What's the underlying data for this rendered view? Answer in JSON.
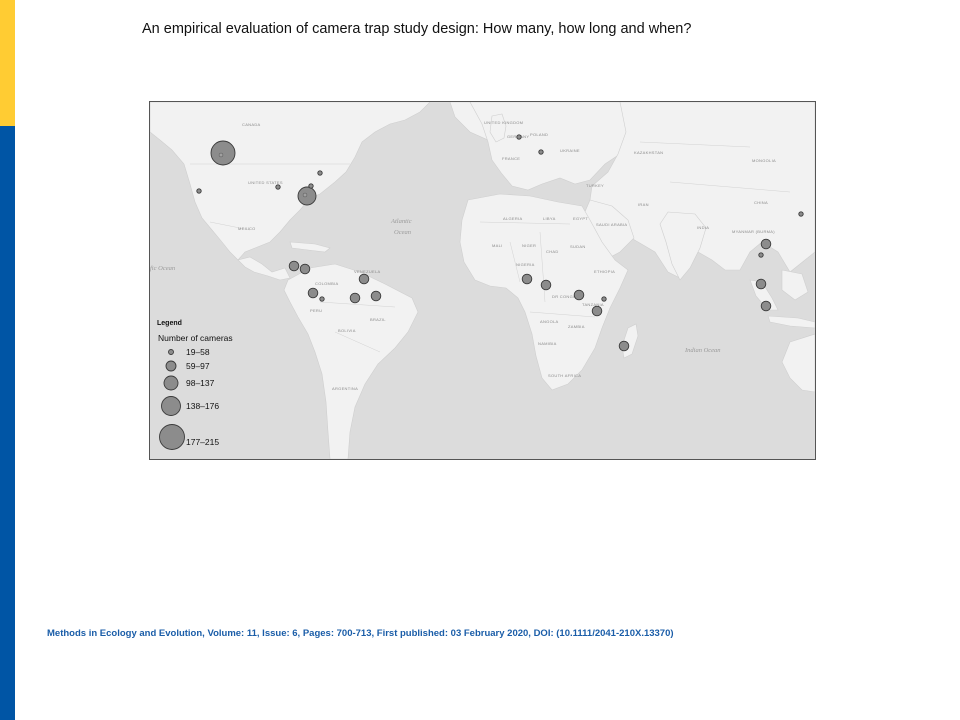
{
  "slide": {
    "title": "An empirical evaluation of camera trap study design: How many, how long and when?",
    "citation": "Methods in Ecology and Evolution, Volume: 11, Issue: 6, Pages: 700-713, First published: 03 February 2020, DOI: (10.1111/2041-210X.13370)"
  },
  "map": {
    "country_labels": [
      {
        "key": "canada",
        "text": "CANADA"
      },
      {
        "key": "usa",
        "text": "UNITED STATES"
      },
      {
        "key": "mexico",
        "text": "MEXICO"
      },
      {
        "key": "venezuela",
        "text": "VENEZUELA"
      },
      {
        "key": "colombia",
        "text": "COLOMBIA"
      },
      {
        "key": "peru",
        "text": "PERU"
      },
      {
        "key": "brazil",
        "text": "BRAZIL"
      },
      {
        "key": "bolivia",
        "text": "BOLIVIA"
      },
      {
        "key": "argentina",
        "text": "ARGENTINA"
      },
      {
        "key": "uk",
        "text": "UNITED KINGDOM"
      },
      {
        "key": "germany",
        "text": "GERMANY"
      },
      {
        "key": "poland",
        "text": "POLAND"
      },
      {
        "key": "france",
        "text": "FRANCE"
      },
      {
        "key": "ukraine",
        "text": "UKRAINE"
      },
      {
        "key": "kazakhstan",
        "text": "KAZAKHSTAN"
      },
      {
        "key": "mongolia",
        "text": "MONGOLIA"
      },
      {
        "key": "turkey",
        "text": "TURKEY"
      },
      {
        "key": "iran",
        "text": "IRAN"
      },
      {
        "key": "china",
        "text": "CHINA"
      },
      {
        "key": "india",
        "text": "INDIA"
      },
      {
        "key": "myanmar",
        "text": "MYANMAR (BURMA)"
      },
      {
        "key": "algeria",
        "text": "ALGERIA"
      },
      {
        "key": "libya",
        "text": "LIBYA"
      },
      {
        "key": "egypt",
        "text": "EGYPT"
      },
      {
        "key": "saudi",
        "text": "SAUDI ARABIA"
      },
      {
        "key": "mali",
        "text": "MALI"
      },
      {
        "key": "niger",
        "text": "NIGER"
      },
      {
        "key": "chad",
        "text": "CHAD"
      },
      {
        "key": "sudan",
        "text": "SUDAN"
      },
      {
        "key": "nigeria",
        "text": "NIGERIA"
      },
      {
        "key": "ethiopia",
        "text": "ETHIOPIA"
      },
      {
        "key": "drc",
        "text": "DR CONGO"
      },
      {
        "key": "tanzania",
        "text": "TANZANIA"
      },
      {
        "key": "angola",
        "text": "ANGOLA"
      },
      {
        "key": "zambia",
        "text": "ZAMBIA"
      },
      {
        "key": "namibia",
        "text": "NAMIBIA"
      },
      {
        "key": "south_africa",
        "text": "SOUTH AFRICA"
      }
    ],
    "ocean_labels": [
      {
        "key": "atlantic1",
        "text": "Atlantic"
      },
      {
        "key": "atlantic2",
        "text": "Ocean"
      },
      {
        "key": "pacific",
        "text": "fic Ocean"
      },
      {
        "key": "indian",
        "text": "Indian Ocean"
      }
    ],
    "legend": {
      "title": "Legend",
      "subtitle": "Number of cameras",
      "classes": [
        "19–58",
        "59–97",
        "98–137",
        "138–176",
        "177–215"
      ]
    },
    "colors": {
      "land": "#f2f2f2",
      "water": "#dcdcdc",
      "marker": "#8c8c8c",
      "marker_stroke": "#3a3a3a"
    }
  }
}
